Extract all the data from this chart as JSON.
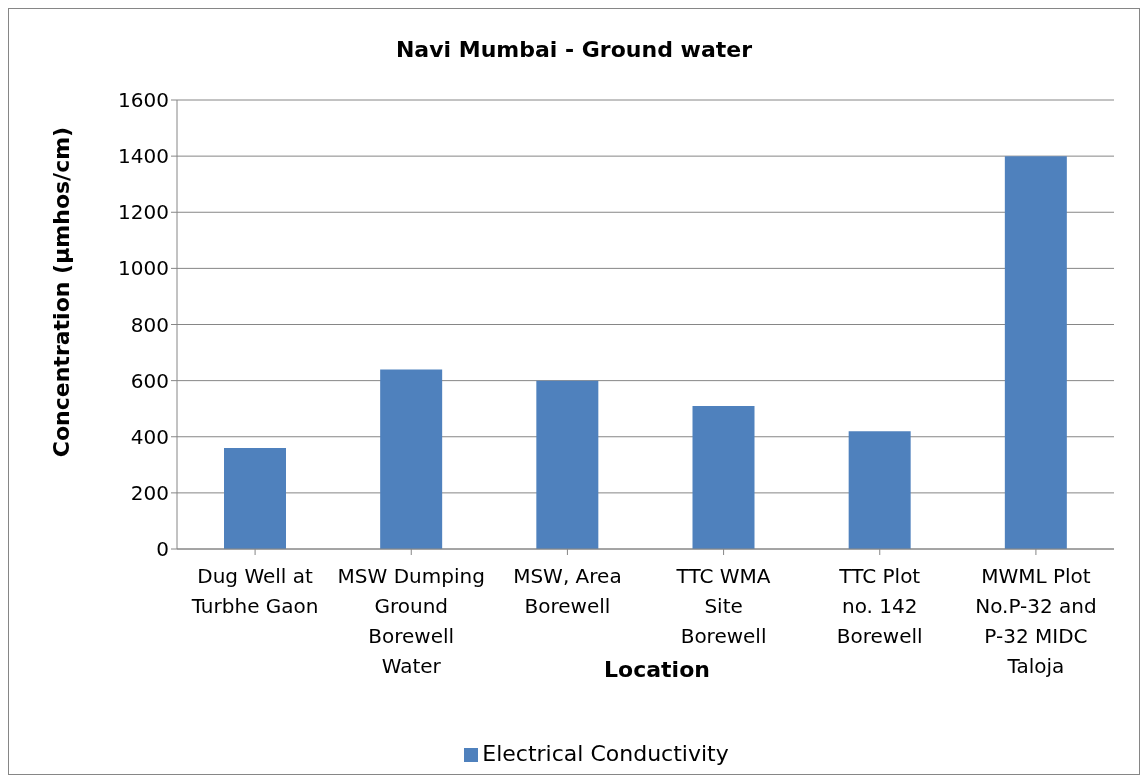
{
  "chart_data": {
    "type": "bar",
    "title": "Navi Mumbai - Ground water",
    "xlabel": "Location",
    "ylabel": "Concentration (µmhos/cm)",
    "categories": [
      "Dug Well at Turbhe Gaon",
      "MSW Dumping Ground Borewell Water",
      "MSW, Area Borewell",
      "TTC WMA Site Borewell",
      "TTC Plot no. 142 Borewell",
      "MWML Plot No.P-32 and P-32 MIDC Taloja"
    ],
    "series": [
      {
        "name": "Electrical Conductivity",
        "color": "#4f81bd",
        "values": [
          360,
          640,
          600,
          510,
          420,
          1400
        ]
      }
    ],
    "ylim": [
      0,
      1600
    ],
    "yticks": [
      0,
      200,
      400,
      600,
      800,
      1000,
      1200,
      1400,
      1600
    ],
    "grid": "y",
    "legend": "bottom"
  }
}
